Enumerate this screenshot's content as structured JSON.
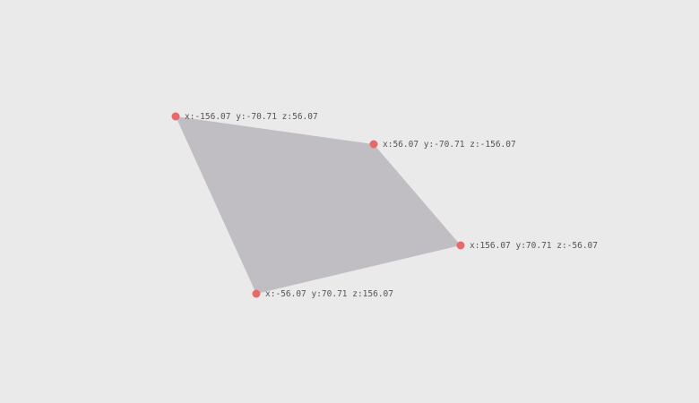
{
  "colors": {
    "background": "#eaeaea",
    "face": "#c1bec3",
    "vertex": "#e8696a",
    "label": "#555555"
  },
  "vertices": [
    {
      "x": -156.07,
      "y": -70.71,
      "z": 56.07,
      "label": "x:-156.07 y:-70.71 z:56.07"
    },
    {
      "x": 56.07,
      "y": -70.71,
      "z": -156.07,
      "label": "x:56.07 y:-70.71 z:-156.07"
    },
    {
      "x": 156.07,
      "y": 70.71,
      "z": -56.07,
      "label": "x:156.07 y:70.71 z:-56.07"
    },
    {
      "x": -56.07,
      "y": 70.71,
      "z": 156.07,
      "label": "x:-56.07 y:70.71 z:156.07"
    }
  ]
}
